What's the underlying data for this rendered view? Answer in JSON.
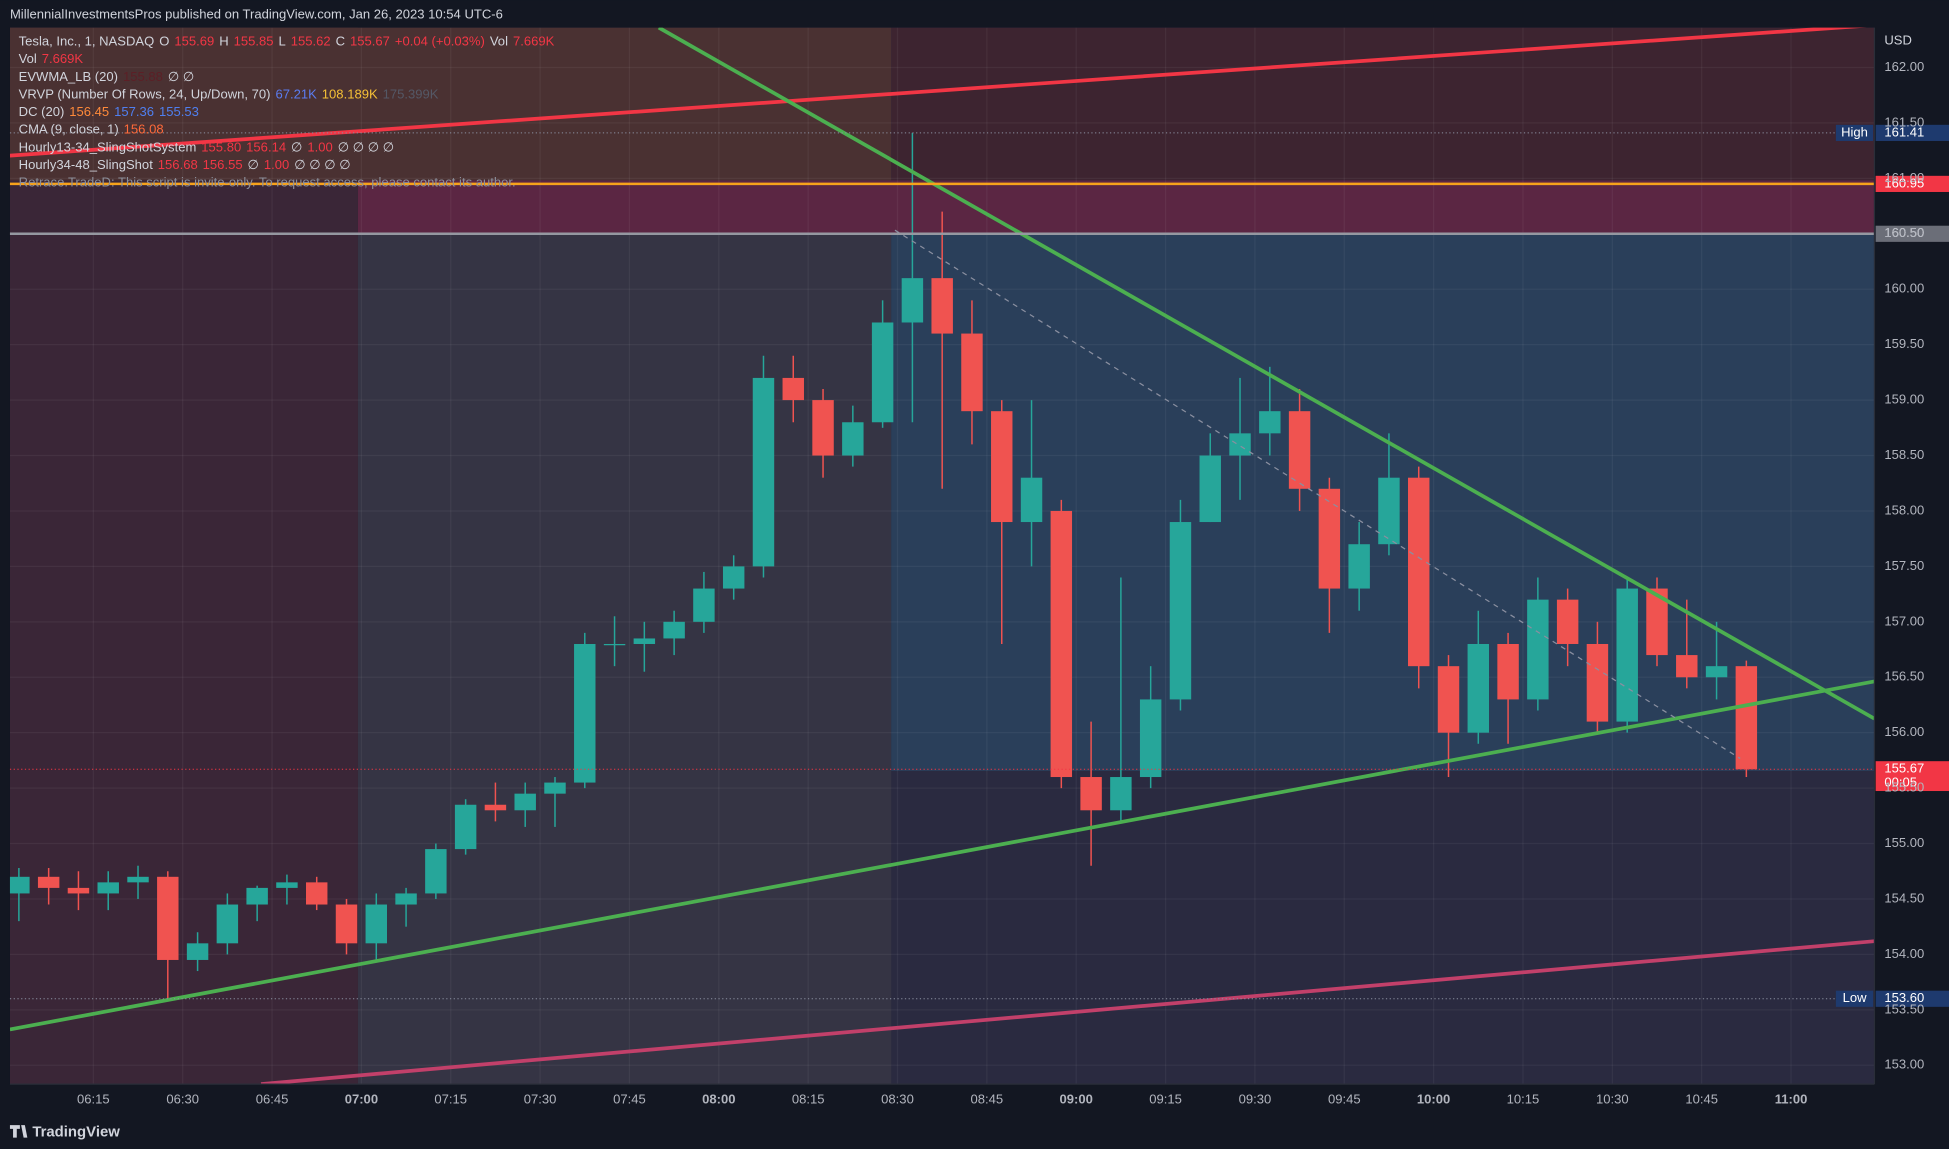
{
  "header": {
    "text": "MillennialInvestmentsPros published on TradingView.com, Jan 26, 2023 10:54 UTC-6"
  },
  "legend": {
    "rows": [
      [
        {
          "text": "Tesla, Inc., 1, NASDAQ",
          "color": "#d1d4dc"
        },
        {
          "text": "O",
          "color": "#d1d4dc"
        },
        {
          "text": "155.69",
          "color": "#f23645"
        },
        {
          "text": "H",
          "color": "#d1d4dc"
        },
        {
          "text": "155.85",
          "color": "#f23645"
        },
        {
          "text": "L",
          "color": "#d1d4dc"
        },
        {
          "text": "155.62",
          "color": "#f23645"
        },
        {
          "text": "C",
          "color": "#d1d4dc"
        },
        {
          "text": "155.67",
          "color": "#f23645"
        },
        {
          "text": "+0.04 (+0.03%)",
          "color": "#f23645"
        },
        {
          "text": "Vol",
          "color": "#d1d4dc"
        },
        {
          "text": "7.669K",
          "color": "#f23645"
        }
      ],
      [
        {
          "text": "Vol",
          "color": "#d1d4dc"
        },
        {
          "text": "7.669K",
          "color": "#f23645"
        }
      ],
      [
        {
          "text": "EVWMA_LB (20)",
          "color": "#d1d4dc"
        },
        {
          "text": "155.88",
          "color": "#5c1f26"
        },
        {
          "text": "∅ ∅",
          "color": "#d1d4dc"
        }
      ],
      [
        {
          "text": "VRVP (Number Of Rows, 24, Up/Down, 70)",
          "color": "#d1d4dc"
        },
        {
          "text": "67.21K",
          "color": "#5b7cf0"
        },
        {
          "text": "108.189K",
          "color": "#f5c036"
        },
        {
          "text": "175.399K",
          "color": "#545866"
        }
      ],
      [
        {
          "text": "DC (20)",
          "color": "#d1d4dc"
        },
        {
          "text": "156.45",
          "color": "#ff8a3a"
        },
        {
          "text": "157.36",
          "color": "#4f7ff0"
        },
        {
          "text": "155.53",
          "color": "#4f7ff0"
        }
      ],
      [
        {
          "text": "CMA (9, close, 1)",
          "color": "#d1d4dc"
        },
        {
          "text": "156.08",
          "color": "#ff6a3a"
        }
      ],
      [
        {
          "text": "Hourly13-34_SlingShotSystem",
          "color": "#d1d4dc"
        },
        {
          "text": "155.80",
          "color": "#f23645"
        },
        {
          "text": "156.14",
          "color": "#f23645"
        },
        {
          "text": "∅",
          "color": "#d1d4dc"
        },
        {
          "text": "1.00",
          "color": "#f23645"
        },
        {
          "text": "∅ ∅ ∅ ∅",
          "color": "#d1d4dc"
        }
      ],
      [
        {
          "text": "Hourly34-48_SlingShot",
          "color": "#d1d4dc"
        },
        {
          "text": "156.68",
          "color": "#f23645"
        },
        {
          "text": "156.55",
          "color": "#f23645"
        },
        {
          "text": "∅",
          "color": "#d1d4dc"
        },
        {
          "text": "1.00",
          "color": "#f23645"
        },
        {
          "text": "∅ ∅ ∅ ∅",
          "color": "#d1d4dc"
        }
      ],
      [
        {
          "text": "Retrace.TradeD: This script is invite-only. To request access, please contact its author.",
          "color": "#8c8f9a"
        }
      ]
    ]
  },
  "chart_data": {
    "type": "candlestick",
    "currency": "USD",
    "x": [
      "06:00",
      "06:05",
      "06:10",
      "06:15",
      "06:20",
      "06:25",
      "06:30",
      "06:35",
      "06:40",
      "06:45",
      "06:50",
      "06:55",
      "07:00",
      "07:05",
      "07:10",
      "07:15",
      "07:20",
      "07:25",
      "07:30",
      "07:35",
      "07:40",
      "07:45",
      "07:50",
      "07:55",
      "08:00",
      "08:05",
      "08:10",
      "08:15",
      "08:20",
      "08:25",
      "08:30",
      "08:35",
      "08:40",
      "08:45",
      "08:50",
      "08:55",
      "09:00",
      "09:05",
      "09:10",
      "09:15",
      "09:20",
      "09:25",
      "09:30",
      "09:35",
      "09:40",
      "09:45",
      "09:50",
      "09:55",
      "10:00",
      "10:05",
      "10:10",
      "10:15",
      "10:20",
      "10:25",
      "10:30",
      "10:35",
      "10:40",
      "10:45",
      "10:50"
    ],
    "open": [
      154.55,
      154.7,
      154.6,
      154.55,
      154.65,
      154.7,
      153.95,
      154.1,
      154.45,
      154.6,
      154.65,
      154.45,
      154.1,
      154.45,
      154.55,
      154.95,
      155.35,
      155.3,
      155.45,
      155.55,
      156.8,
      156.8,
      156.85,
      157.0,
      157.3,
      157.5,
      159.2,
      159.0,
      158.5,
      158.8,
      159.7,
      160.1,
      159.6,
      158.9,
      157.9,
      158.0,
      155.6,
      155.3,
      155.6,
      156.3,
      157.9,
      158.5,
      158.7,
      158.9,
      158.2,
      157.3,
      157.7,
      158.3,
      156.6,
      156.0,
      156.8,
      156.3,
      157.2,
      156.8,
      156.1,
      157.3,
      156.7,
      156.5,
      156.6
    ],
    "high": [
      154.78,
      154.78,
      154.75,
      154.75,
      154.8,
      154.75,
      154.2,
      154.55,
      154.62,
      154.72,
      154.7,
      154.5,
      154.55,
      154.6,
      155.0,
      155.4,
      155.55,
      155.55,
      155.6,
      156.9,
      157.05,
      157.0,
      157.1,
      157.45,
      157.6,
      159.4,
      159.4,
      159.1,
      158.95,
      159.9,
      161.41,
      160.7,
      159.9,
      159.0,
      159.0,
      158.1,
      156.1,
      157.4,
      156.6,
      158.1,
      158.7,
      159.2,
      159.3,
      159.1,
      158.3,
      157.9,
      158.7,
      158.4,
      156.7,
      157.1,
      156.9,
      157.4,
      157.3,
      157.0,
      157.4,
      157.4,
      157.2,
      157.0,
      156.65
    ],
    "low": [
      154.3,
      154.45,
      154.4,
      154.4,
      154.5,
      153.6,
      153.85,
      154.0,
      154.3,
      154.45,
      154.4,
      154.0,
      153.95,
      154.25,
      154.5,
      154.9,
      155.2,
      155.15,
      155.15,
      155.5,
      156.6,
      156.55,
      156.7,
      156.9,
      157.2,
      157.4,
      158.8,
      158.3,
      158.4,
      158.75,
      158.8,
      158.2,
      158.6,
      156.8,
      157.5,
      155.5,
      154.8,
      155.2,
      155.5,
      156.2,
      157.9,
      158.1,
      158.5,
      158.0,
      156.9,
      157.1,
      157.6,
      156.4,
      155.6,
      155.9,
      155.9,
      156.2,
      156.6,
      156.0,
      156.0,
      156.6,
      156.4,
      156.3,
      155.6
    ],
    "close": [
      154.7,
      154.6,
      154.55,
      154.65,
      154.7,
      153.95,
      154.1,
      154.45,
      154.6,
      154.65,
      154.45,
      154.1,
      154.45,
      154.55,
      154.95,
      155.35,
      155.3,
      155.45,
      155.55,
      156.8,
      156.8,
      156.85,
      157.0,
      157.3,
      157.5,
      159.2,
      159.0,
      158.5,
      158.8,
      159.7,
      160.1,
      159.6,
      158.9,
      157.9,
      158.3,
      155.6,
      155.3,
      155.6,
      156.3,
      157.9,
      158.5,
      158.7,
      158.9,
      158.2,
      157.3,
      157.7,
      158.3,
      156.6,
      156.0,
      156.8,
      156.3,
      157.2,
      156.8,
      156.1,
      157.3,
      156.7,
      156.5,
      156.6,
      155.67
    ],
    "up_color": "#26a69a",
    "down_color": "#f05350",
    "xlim": [
      "06:01",
      "11:14"
    ],
    "xticks": [
      "06:15",
      "06:30",
      "06:45",
      "07:00",
      "07:15",
      "07:30",
      "07:45",
      "08:00",
      "08:15",
      "08:30",
      "08:45",
      "09:00",
      "09:15",
      "09:30",
      "09:45",
      "10:00",
      "10:15",
      "10:30",
      "10:45",
      "11:00"
    ],
    "ylim": [
      152.83,
      162.36
    ],
    "yticks": [
      {
        "value": 153,
        "label": "153.00"
      },
      {
        "value": 153.5,
        "label": "153.50"
      },
      {
        "value": 154,
        "label": "154.00"
      },
      {
        "value": 154.5,
        "label": "154.50"
      },
      {
        "value": 155,
        "label": "155.00"
      },
      {
        "value": 155.5,
        "label": "155.50"
      },
      {
        "value": 156,
        "label": "156.00"
      },
      {
        "value": 156.5,
        "label": "156.50"
      },
      {
        "value": 157,
        "label": "157.00"
      },
      {
        "value": 157.5,
        "label": "157.50"
      },
      {
        "value": 158,
        "label": "158.00"
      },
      {
        "value": 158.5,
        "label": "158.50"
      },
      {
        "value": 159,
        "label": "159.00"
      },
      {
        "value": 159.5,
        "label": "159.50"
      },
      {
        "value": 160,
        "label": "160.00"
      },
      {
        "value": 160.5,
        "label": "160.50"
      },
      {
        "value": 161,
        "label": "161.00"
      },
      {
        "value": 161.5,
        "label": "161.50"
      },
      {
        "value": 162,
        "label": "162.00"
      }
    ],
    "grid": true,
    "price_markers": [
      {
        "name": "High",
        "value": 161.41,
        "text": "161.41",
        "color": "#1e3a6e",
        "line": "#8a8fa0",
        "dash": true
      },
      {
        "value": 160.95,
        "text": "160.95",
        "color": "#f23645",
        "line": "#f7a21b",
        "dash": false
      },
      {
        "value": 160.5,
        "text": "160.50",
        "color": "#6b6e78",
        "line": "#9598a1",
        "dash": false
      },
      {
        "value": 155.67,
        "text": "155.67",
        "sub": "00:05",
        "color": "#f23645",
        "line": "#f23645",
        "dash": true
      },
      {
        "name": "Low",
        "value": 153.6,
        "text": "153.60",
        "color": "#1e3a6e",
        "line": "#8a8fa0",
        "dash": true
      }
    ]
  },
  "footer": {
    "brand": "TradingView"
  }
}
